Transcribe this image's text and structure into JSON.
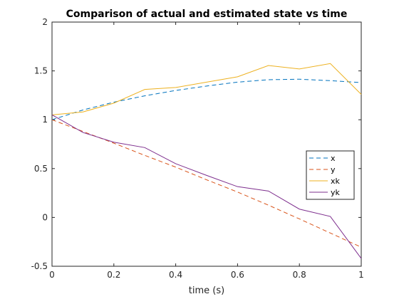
{
  "chart_data": {
    "type": "line",
    "title": "Comparison of actual and estimated state vs time",
    "xlabel": "time (s)",
    "ylabel": "",
    "xlim": [
      0,
      1
    ],
    "ylim": [
      -0.5,
      2
    ],
    "xticks": [
      0,
      0.2,
      0.4,
      0.6,
      0.8,
      1
    ],
    "xtick_labels": [
      "0",
      "0.2",
      "0.4",
      "0.6",
      "0.8",
      "1"
    ],
    "yticks": [
      -0.5,
      0,
      0.5,
      1,
      1.5,
      2
    ],
    "ytick_labels": [
      "-0.5",
      "0",
      "0.5",
      "1",
      "1.5",
      "2"
    ],
    "grid": false,
    "legend_position": "right",
    "x": [
      0,
      0.1,
      0.2,
      0.3,
      0.4,
      0.5,
      0.6,
      0.7,
      0.8,
      0.9,
      1.0
    ],
    "series": [
      {
        "name": "x",
        "style": "dashed",
        "color": "#0072BD",
        "values": [
          1.0,
          1.1,
          1.18,
          1.245,
          1.3,
          1.345,
          1.385,
          1.41,
          1.415,
          1.4,
          1.38
        ]
      },
      {
        "name": "y",
        "style": "dashed",
        "color": "#D95319",
        "values": [
          1.0,
          0.88,
          0.76,
          0.635,
          0.515,
          0.385,
          0.26,
          0.125,
          -0.015,
          -0.16,
          -0.305
        ]
      },
      {
        "name": "xk",
        "style": "solid",
        "color": "#EDB120",
        "values": [
          1.05,
          1.08,
          1.17,
          1.31,
          1.33,
          1.385,
          1.44,
          1.555,
          1.52,
          1.575,
          1.26
        ]
      },
      {
        "name": "yk",
        "style": "solid",
        "color": "#7E2F8E",
        "values": [
          1.05,
          0.87,
          0.77,
          0.715,
          0.55,
          0.43,
          0.315,
          0.27,
          0.085,
          0.01,
          -0.42
        ]
      }
    ]
  }
}
